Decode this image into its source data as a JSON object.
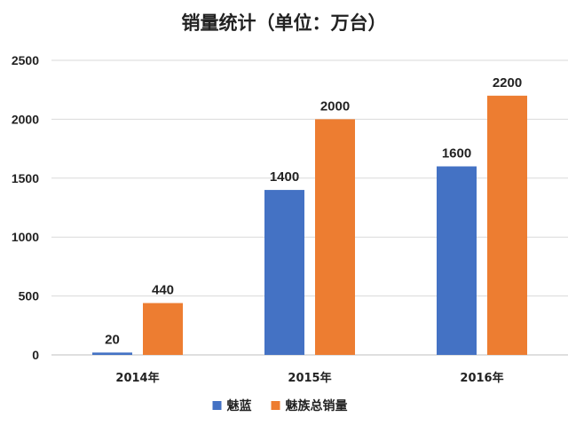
{
  "chart_data": {
    "type": "bar",
    "title": "销量统计（单位：万台）",
    "categories": [
      "2014年",
      "2015年",
      "2016年"
    ],
    "series": [
      {
        "name": "魅蓝",
        "color": "#4472C4",
        "values": [
          20,
          1400,
          1600
        ]
      },
      {
        "name": "魅族总销量",
        "color": "#ED7D31",
        "values": [
          440,
          2000,
          2200
        ]
      }
    ],
    "ylim": [
      0,
      2500
    ],
    "yticks": [
      0,
      500,
      1000,
      1500,
      2000,
      2500
    ],
    "grid": true,
    "legend": "bottom",
    "data_labels": true
  }
}
